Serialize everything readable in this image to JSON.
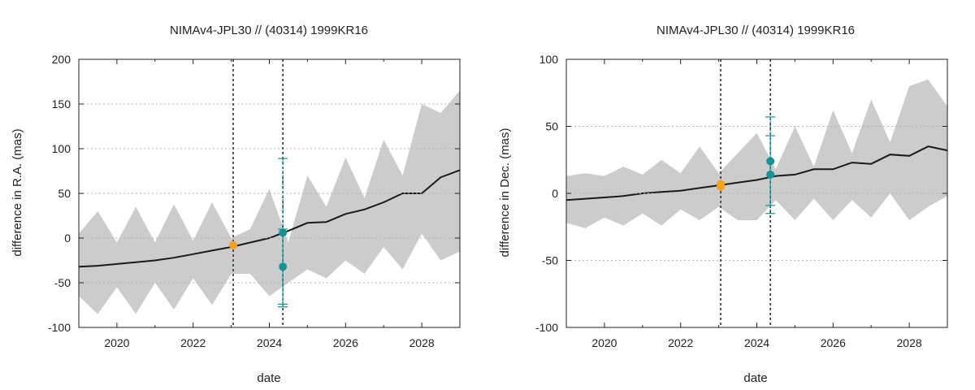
{
  "colors": {
    "envelope": "#cccccc",
    "trend": "#1a1a1a",
    "orange_points": "#f7a21b",
    "teal_points": "#119494",
    "grid": "#b3b3b3",
    "vline": "#333333"
  },
  "chart_data": [
    {
      "type": "line",
      "title": "NIMAv4-JPL30 // (40314) 1999KR16",
      "xlabel": "date",
      "ylabel": "difference in R.A. (mas)",
      "xlim": [
        "2019-01-01",
        "2029-01-01"
      ],
      "ylim": [
        -100,
        200
      ],
      "xticks": [
        "2020",
        "2022",
        "2024",
        "2026",
        "2028"
      ],
      "yticks": [
        "-100",
        "-50",
        "0",
        "50",
        "100",
        "150",
        "200"
      ],
      "grid": true,
      "vlines": [
        "2023-01-20",
        "2024-05-10"
      ],
      "series": [
        {
          "role": "trend",
          "x": [
            "2019-01-01",
            "2019-07-01",
            "2020-01-01",
            "2020-07-01",
            "2021-01-01",
            "2021-07-01",
            "2022-01-01",
            "2022-07-01",
            "2023-01-01",
            "2023-07-01",
            "2024-01-01",
            "2024-07-01",
            "2025-01-01",
            "2025-07-01",
            "2026-01-01",
            "2026-07-01",
            "2027-01-01",
            "2027-07-01",
            "2028-01-01",
            "2028-07-01",
            "2029-01-01"
          ],
          "y": [
            -32,
            -31,
            -29,
            -27,
            -25,
            -22,
            -18,
            -14,
            -10,
            -5,
            0,
            8,
            17,
            18,
            27,
            32,
            40,
            50,
            50,
            68,
            76
          ]
        },
        {
          "role": "envelope",
          "x": [
            "2019-01-01",
            "2019-07-01",
            "2020-01-01",
            "2020-07-01",
            "2021-01-01",
            "2021-07-01",
            "2022-01-01",
            "2022-07-01",
            "2023-01-01",
            "2023-07-01",
            "2024-01-01",
            "2024-07-01",
            "2025-01-01",
            "2025-07-01",
            "2026-01-01",
            "2026-07-01",
            "2027-01-01",
            "2027-07-01",
            "2028-01-01",
            "2028-07-01",
            "2029-01-01"
          ],
          "upper": [
            5,
            30,
            -5,
            35,
            -5,
            38,
            -3,
            40,
            0,
            10,
            55,
            -5,
            70,
            35,
            90,
            45,
            110,
            70,
            150,
            140,
            165
          ],
          "lower": [
            -65,
            -85,
            -55,
            -85,
            -50,
            -80,
            -45,
            -75,
            -40,
            -40,
            -65,
            -50,
            -35,
            -45,
            -25,
            -40,
            -10,
            -35,
            5,
            -25,
            -15
          ]
        },
        {
          "role": "points",
          "color": "orange",
          "points": [
            {
              "x": "2023-01-20",
              "y": -8
            }
          ]
        },
        {
          "role": "points",
          "color": "teal",
          "points": [
            {
              "x": "2024-05-10",
              "y": 6,
              "err": 83
            },
            {
              "x": "2024-05-10",
              "y": -32,
              "err": 42
            }
          ]
        }
      ]
    },
    {
      "type": "line",
      "title": "NIMAv4-JPL30 // (40314) 1999KR16",
      "xlabel": "date",
      "ylabel": "difference in Dec. (mas)",
      "xlim": [
        "2019-01-01",
        "2029-01-01"
      ],
      "ylim": [
        -100,
        100
      ],
      "xticks": [
        "2020",
        "2022",
        "2024",
        "2026",
        "2028"
      ],
      "yticks": [
        "-100",
        "-50",
        "0",
        "50",
        "100"
      ],
      "grid": true,
      "vlines": [
        "2023-01-20",
        "2024-05-10"
      ],
      "series": [
        {
          "role": "trend",
          "x": [
            "2019-01-01",
            "2019-07-01",
            "2020-01-01",
            "2020-07-01",
            "2021-01-01",
            "2021-07-01",
            "2022-01-01",
            "2022-07-01",
            "2023-01-01",
            "2023-07-01",
            "2024-01-01",
            "2024-07-01",
            "2025-01-01",
            "2025-07-01",
            "2026-01-01",
            "2026-07-01",
            "2027-01-01",
            "2027-07-01",
            "2028-01-01",
            "2028-07-01",
            "2029-01-01"
          ],
          "y": [
            -5,
            -4,
            -3,
            -2,
            0,
            1,
            2,
            4,
            6,
            8,
            10,
            13,
            14,
            18,
            18,
            23,
            22,
            29,
            28,
            35,
            32
          ]
        },
        {
          "role": "envelope",
          "x": [
            "2019-01-01",
            "2019-07-01",
            "2020-01-01",
            "2020-07-01",
            "2021-01-01",
            "2021-07-01",
            "2022-01-01",
            "2022-07-01",
            "2023-01-01",
            "2023-07-01",
            "2024-01-01",
            "2024-07-01",
            "2025-01-01",
            "2025-07-01",
            "2026-01-01",
            "2026-07-01",
            "2027-01-01",
            "2027-07-01",
            "2028-01-01",
            "2028-07-01",
            "2029-01-01"
          ],
          "upper": [
            13,
            15,
            13,
            20,
            14,
            25,
            15,
            35,
            15,
            30,
            45,
            18,
            50,
            20,
            62,
            30,
            70,
            38,
            80,
            85,
            65
          ],
          "lower": [
            -22,
            -26,
            -18,
            -24,
            -15,
            -24,
            -12,
            -20,
            -10,
            -20,
            -20,
            -5,
            -20,
            -4,
            -20,
            -5,
            -18,
            0,
            -20,
            -10,
            -2
          ]
        },
        {
          "role": "points",
          "color": "orange",
          "points": [
            {
              "x": "2023-01-20",
              "y": 7
            },
            {
              "x": "2023-01-20",
              "y": 5
            }
          ]
        },
        {
          "role": "points",
          "color": "teal",
          "points": [
            {
              "x": "2024-05-10",
              "y": 24,
              "err": 33
            },
            {
              "x": "2024-05-10",
              "y": 14,
              "err": 29
            }
          ]
        }
      ]
    }
  ]
}
